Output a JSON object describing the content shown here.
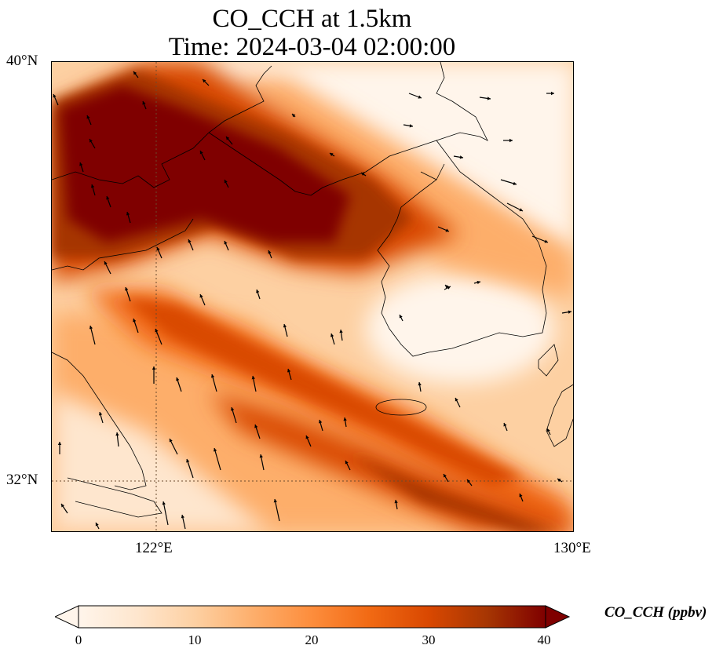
{
  "title_line1": "CO_CCH at 1.5km",
  "title_line2": "Time: 2024-03-04 02:00:00",
  "lat_ticks": [
    "40°N",
    "32°N"
  ],
  "lon_ticks": [
    "122°E",
    "130°E"
  ],
  "colorbar": {
    "label": "CO_CCH (ppbv)",
    "ticks": [
      "0",
      "10",
      "20",
      "30",
      "40"
    ],
    "min": 0,
    "max": 40,
    "colormap": [
      "#fff5eb",
      "#fee6ce",
      "#fdd0a2",
      "#fdae6b",
      "#fd8d3c",
      "#f16913",
      "#d94801",
      "#a63603",
      "#7f0000"
    ],
    "extend": "both"
  },
  "map": {
    "variable": "CO_CCH",
    "level": "1.5km",
    "lon_range": [
      120,
      130
    ],
    "lat_range": [
      31,
      40
    ],
    "gridlines": {
      "lon": [
        122
      ],
      "lat": [
        32
      ]
    },
    "features": [
      "coastline",
      "wind-vectors",
      "concentration-field"
    ]
  }
}
